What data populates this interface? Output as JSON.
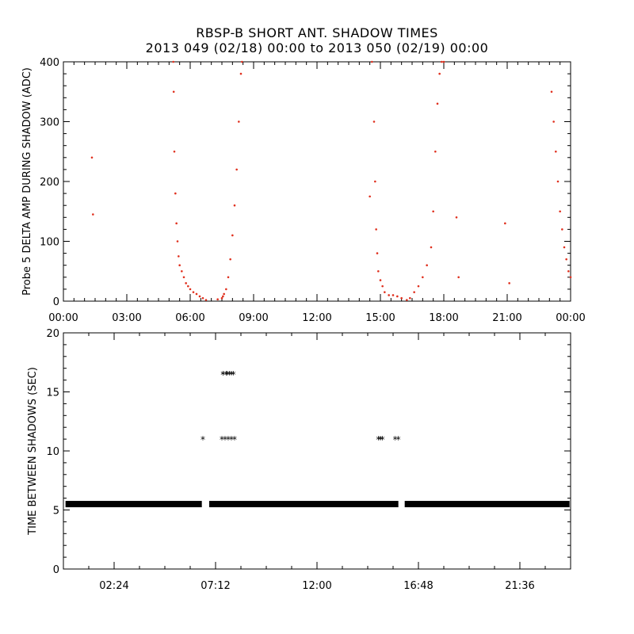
{
  "title_line1": "RBSP-B SHORT ANT. SHADOW TIMES",
  "title_line2": "2013 049 (02/18) 00:00 to 2013 050 (02/19) 00:00",
  "colors": {
    "top_points": "#e0301e",
    "bottom_points": "#000000",
    "axes": "#000000"
  },
  "chart_data": [
    {
      "type": "scatter",
      "ylabel": "Probe 5 DELTA AMP DURING SHADOW (ADC)",
      "xlim": [
        0,
        24
      ],
      "ylim": [
        0,
        400
      ],
      "x_unit": "hours",
      "x_ticks": [
        0,
        3,
        6,
        9,
        12,
        15,
        18,
        21,
        24
      ],
      "x_tick_labels": [
        "00:00",
        "03:00",
        "06:00",
        "09:00",
        "12:00",
        "15:00",
        "18:00",
        "21:00",
        "00:00"
      ],
      "y_ticks": [
        0,
        100,
        200,
        300,
        400
      ],
      "y_tick_labels": [
        "0",
        "100",
        "200",
        "300",
        "400"
      ],
      "point_color": "#e0301e",
      "series": [
        {
          "x": [
            1.35,
            1.4,
            5.2,
            5.22,
            5.25,
            5.3,
            5.35,
            5.4,
            5.45,
            5.5,
            5.6,
            5.7,
            5.8,
            5.9,
            6.0,
            6.15,
            6.3,
            6.45,
            6.6,
            6.75,
            7.3,
            7.5,
            7.55,
            7.6,
            7.7,
            7.8,
            7.9,
            8.0,
            8.1,
            8.2,
            8.3,
            8.4,
            8.45,
            14.6,
            14.7,
            14.75,
            14.8,
            14.85,
            14.9,
            15.0,
            15.1,
            15.2,
            15.4,
            15.6,
            15.8,
            16.0,
            16.25,
            16.4,
            16.6,
            16.8,
            17.0,
            17.2,
            17.4,
            17.5,
            17.6,
            17.7,
            17.8,
            17.9,
            18.0,
            14.5,
            18.6,
            18.7,
            20.9,
            21.1,
            23.1,
            23.2,
            23.3,
            23.4,
            23.5,
            23.6,
            23.7,
            23.8,
            23.9,
            24.0
          ],
          "y": [
            240,
            145,
            400,
            350,
            250,
            180,
            130,
            100,
            75,
            60,
            50,
            40,
            30,
            25,
            20,
            15,
            12,
            8,
            5,
            2,
            3,
            5,
            8,
            12,
            20,
            40,
            70,
            110,
            160,
            220,
            300,
            380,
            400,
            400,
            300,
            200,
            120,
            80,
            50,
            35,
            25,
            15,
            10,
            10,
            8,
            5,
            2,
            5,
            15,
            25,
            40,
            60,
            90,
            150,
            250,
            330,
            380,
            400,
            400,
            175,
            140,
            40,
            130,
            30,
            350,
            300,
            250,
            200,
            150,
            120,
            90,
            70,
            50,
            40
          ]
        }
      ]
    },
    {
      "type": "scatter",
      "ylabel": "TIME BETWEEN SHADOWS (SEC)",
      "xlim": [
        0,
        24
      ],
      "ylim": [
        0,
        20
      ],
      "x_unit": "hours",
      "x_ticks": [
        2.4,
        7.2,
        12.0,
        16.8,
        21.6
      ],
      "x_tick_labels": [
        "02:24",
        "07:12",
        "12:00",
        "16:48",
        "21:36"
      ],
      "y_ticks": [
        0,
        5,
        10,
        15,
        20
      ],
      "y_tick_labels": [
        "0",
        "5",
        "10",
        "15",
        "20"
      ],
      "point_color": "#000000",
      "marker": "asterisk",
      "baseline_value": 5.5,
      "baseline_segments": [
        [
          0.1,
          6.55
        ],
        [
          6.9,
          15.85
        ],
        [
          16.15,
          23.95
        ]
      ],
      "series": [
        {
          "x": [
            6.6,
            7.5,
            7.65,
            7.8,
            7.95,
            8.1,
            7.55,
            7.7,
            7.85,
            7.55,
            7.75,
            7.95,
            8.05,
            14.9,
            15.0,
            15.1,
            15.7,
            15.85
          ],
          "y": [
            11,
            11,
            11,
            11,
            11,
            11,
            16.5,
            16.5,
            16.5,
            16.5,
            16.5,
            16.5,
            16.5,
            11,
            11,
            11,
            11,
            11
          ]
        }
      ]
    }
  ]
}
